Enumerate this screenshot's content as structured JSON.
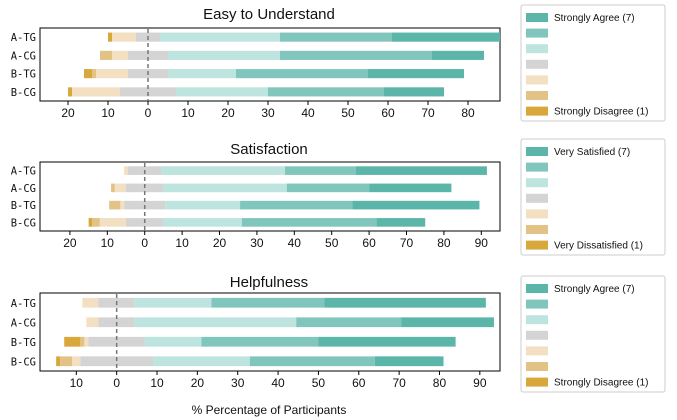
{
  "colors": {
    "strong_pos": "#5cb5a9",
    "mid_pos": "#80c6bc",
    "weak_pos": "#bde4de",
    "neutral": "#d4d4d4",
    "weak_neg": "#f3dfc1",
    "mid_neg": "#e2c285",
    "strong_neg": "#d8a83c",
    "center_line": "#777777",
    "axis": "#000000"
  },
  "x_label": "% Percentage of Participants",
  "chart_data": [
    {
      "type": "bar",
      "orientation": "horizontal-diverging-stacked",
      "title": "Easy to Understand",
      "categories": [
        "A-TG",
        "A-CG",
        "B-TG",
        "B-CG"
      ],
      "xlim": [
        -27,
        88
      ],
      "xticks": [
        -20,
        -10,
        0,
        10,
        20,
        30,
        40,
        50,
        60,
        70,
        80
      ],
      "xticklabels": [
        "20",
        "10",
        "0",
        "10",
        "20",
        "30",
        "40",
        "50",
        "60",
        "70",
        "80"
      ],
      "series": [
        {
          "name": "Strongly Disagree (1)",
          "values": [
            1,
            0,
            2,
            1
          ]
        },
        {
          "name": "",
          "values": [
            0,
            3,
            1,
            0
          ]
        },
        {
          "name": "",
          "values": [
            6,
            4,
            8,
            12
          ]
        },
        {
          "name": "",
          "values": [
            6,
            10,
            10,
            14
          ]
        },
        {
          "name": "",
          "values": [
            30,
            28,
            17,
            23
          ]
        },
        {
          "name": "",
          "values": [
            28,
            38,
            33,
            29
          ]
        },
        {
          "name": "Strongly Agree (7)",
          "values": [
            27,
            13,
            24,
            15
          ]
        }
      ],
      "legend": {
        "position": "right",
        "entries": [
          "Strongly Agree (7)",
          "",
          "",
          "",
          "",
          "",
          "Strongly Disagree (1)"
        ]
      }
    },
    {
      "type": "bar",
      "orientation": "horizontal-diverging-stacked",
      "title": "Satisfaction",
      "categories": [
        "A-TG",
        "A-CG",
        "B-TG",
        "B-CG"
      ],
      "xlim": [
        -28,
        95
      ],
      "xticks": [
        -20,
        -10,
        0,
        10,
        20,
        30,
        40,
        50,
        60,
        70,
        80,
        90
      ],
      "xticklabels": [
        "20",
        "10",
        "0",
        "10",
        "20",
        "30",
        "40",
        "50",
        "60",
        "70",
        "80",
        "90"
      ],
      "series": [
        {
          "name": "Very Dissatisfied (1)",
          "values": [
            0,
            0,
            0,
            1
          ]
        },
        {
          "name": "",
          "values": [
            0,
            1,
            3,
            2
          ]
        },
        {
          "name": "",
          "values": [
            1,
            3,
            1,
            7
          ]
        },
        {
          "name": "",
          "values": [
            9,
            10,
            11,
            10
          ]
        },
        {
          "name": "",
          "values": [
            33,
            33,
            20,
            21
          ]
        },
        {
          "name": "",
          "values": [
            19,
            22,
            30,
            36
          ]
        },
        {
          "name": "Very Satisfied (7)",
          "values": [
            35,
            22,
            34,
            13
          ]
        }
      ],
      "legend": {
        "position": "right",
        "entries": [
          "Very Satisfied (7)",
          "",
          "",
          "",
          "",
          "",
          "Very Dissatisfied (1)"
        ]
      }
    },
    {
      "type": "bar",
      "orientation": "horizontal-diverging-stacked",
      "title": "Helpfulness",
      "categories": [
        "A-TG",
        "A-CG",
        "B-TG",
        "B-CG"
      ],
      "xlim": [
        -19,
        95
      ],
      "xticks": [
        -10,
        0,
        10,
        20,
        30,
        40,
        50,
        60,
        70,
        80,
        90
      ],
      "xticklabels": [
        "10",
        "0",
        "10",
        "20",
        "30",
        "40",
        "50",
        "60",
        "70",
        "80",
        "90"
      ],
      "series": [
        {
          "name": "Strongly Disagree (1)",
          "values": [
            0,
            0,
            4,
            1
          ]
        },
        {
          "name": "",
          "values": [
            0,
            0,
            1,
            3
          ]
        },
        {
          "name": "",
          "values": [
            4,
            3,
            1,
            2
          ]
        },
        {
          "name": "",
          "values": [
            9,
            9,
            14,
            18
          ]
        },
        {
          "name": "",
          "values": [
            19,
            40,
            14,
            24
          ]
        },
        {
          "name": "",
          "values": [
            28,
            26,
            29,
            31
          ]
        },
        {
          "name": "Strongly Agree (7)",
          "values": [
            40,
            23,
            34,
            17
          ]
        }
      ],
      "legend": {
        "position": "right",
        "entries": [
          "Strongly Agree (7)",
          "",
          "",
          "",
          "",
          "",
          "Strongly Disagree (1)"
        ]
      }
    }
  ]
}
